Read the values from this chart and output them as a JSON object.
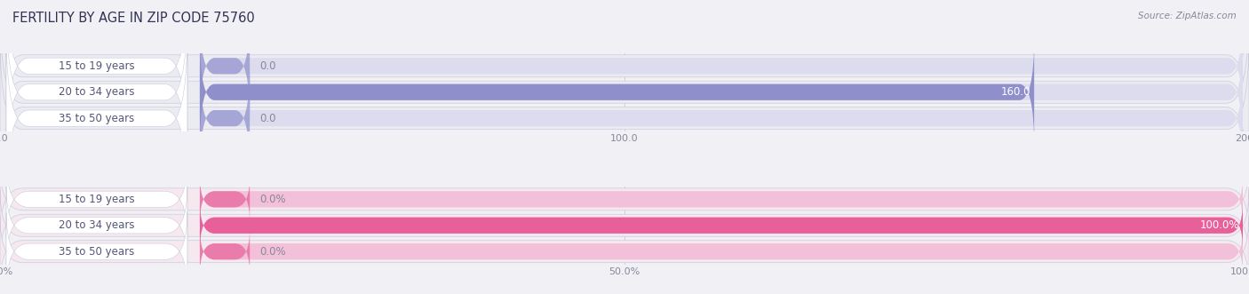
{
  "title": "FERTILITY BY AGE IN ZIP CODE 75760",
  "source": "Source: ZipAtlas.com",
  "top_chart": {
    "categories": [
      "15 to 19 years",
      "20 to 34 years",
      "35 to 50 years"
    ],
    "values": [
      0.0,
      160.0,
      0.0
    ],
    "max_value": 200.0,
    "bar_color": "#8f8fcc",
    "bar_bg_color": "#dcdcee",
    "bar_row_bg": "#ebebf2",
    "tick_values": [
      0.0,
      100.0,
      200.0
    ],
    "tick_labels": [
      "0.0",
      "100.0",
      "200.0"
    ]
  },
  "bottom_chart": {
    "categories": [
      "15 to 19 years",
      "20 to 34 years",
      "35 to 50 years"
    ],
    "values": [
      0.0,
      100.0,
      0.0
    ],
    "max_value": 100.0,
    "bar_color": "#e8609a",
    "bar_bg_color": "#f2c0d8",
    "bar_row_bg": "#f5e8ef",
    "tick_values": [
      0.0,
      50.0,
      100.0
    ],
    "tick_labels": [
      "0.0%",
      "50.0%",
      "100.0%"
    ]
  },
  "label_badge_color": "#ffffff",
  "label_text_color": "#555577",
  "value_color_inside": "#ffffff",
  "value_color_outside": "#888899",
  "bg_color": "#f0f0f5",
  "title_fontsize": 10.5,
  "label_fontsize": 8.5,
  "tick_fontsize": 8,
  "source_fontsize": 7.5
}
